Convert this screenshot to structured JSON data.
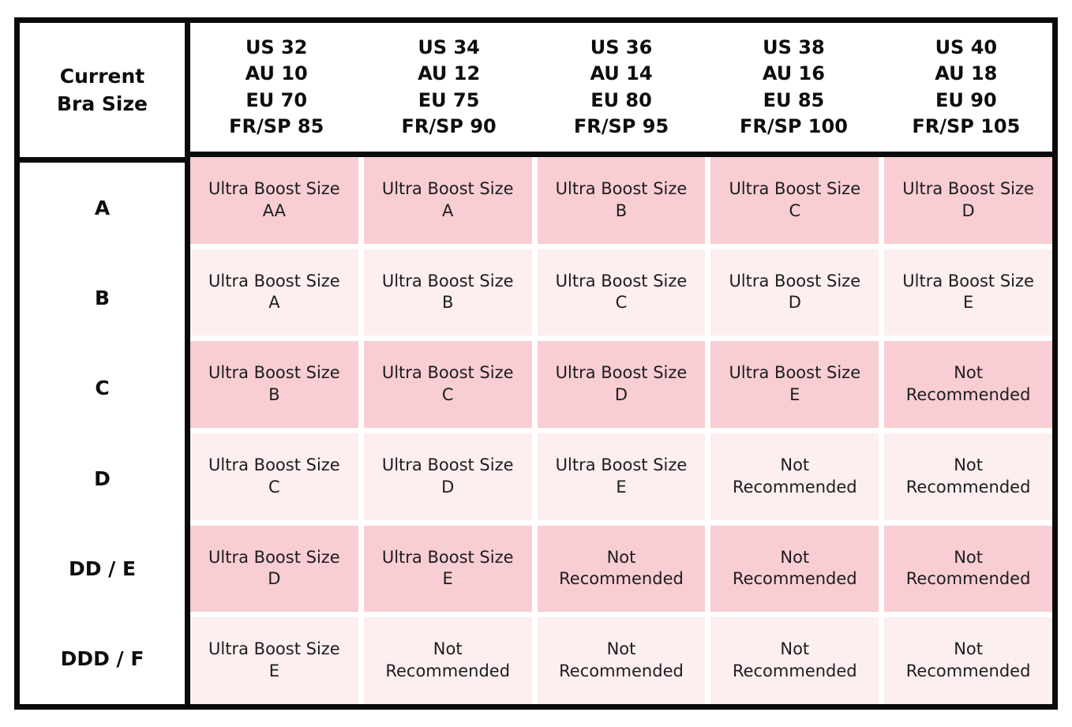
{
  "colors": {
    "border": "#0a0a0a",
    "text": "#1d1d1d",
    "cell_dark": "#f8cdd3",
    "cell_light": "#fdeef0",
    "background": "#ffffff"
  },
  "chart_data": {
    "type": "table",
    "corner_header": "Current\nBra Size",
    "column_headers": [
      "US 32\nAU 10\nEU 70\nFR/SP 85",
      "US 34\nAU 12\nEU 75\nFR/SP 90",
      "US 36\nAU 14\nEU 80\nFR/SP 95",
      "US 38\nAU 16\nEU 85\nFR/SP 100",
      "US 40\nAU 18\nEU 90\nFR/SP 105"
    ],
    "rows": [
      {
        "label": "A",
        "shade": "dark",
        "cells": [
          "Ultra Boost Size\nAA",
          "Ultra Boost Size\nA",
          "Ultra Boost Size\nB",
          "Ultra Boost Size\nC",
          "Ultra Boost Size\nD"
        ]
      },
      {
        "label": "B",
        "shade": "light",
        "cells": [
          "Ultra Boost Size\nA",
          "Ultra Boost Size\nB",
          "Ultra Boost Size\nC",
          "Ultra Boost Size\nD",
          "Ultra Boost Size\nE"
        ]
      },
      {
        "label": "C",
        "shade": "dark",
        "cells": [
          "Ultra Boost Size\nB",
          "Ultra Boost Size\nC",
          "Ultra Boost Size\nD",
          "Ultra Boost Size\nE",
          "Not\nRecommended"
        ]
      },
      {
        "label": "D",
        "shade": "light",
        "cells": [
          "Ultra Boost Size\nC",
          "Ultra Boost Size\nD",
          "Ultra Boost Size\nE",
          "Not\nRecommended",
          "Not\nRecommended"
        ]
      },
      {
        "label": "DD / E",
        "shade": "dark",
        "cells": [
          "Ultra Boost Size\nD",
          "Ultra Boost Size\nE",
          "Not\nRecommended",
          "Not\nRecommended",
          "Not\nRecommended"
        ]
      },
      {
        "label": "DDD / F",
        "shade": "light",
        "cells": [
          "Ultra Boost Size\nE",
          "Not\nRecommended",
          "Not\nRecommended",
          "Not\nRecommended",
          "Not\nRecommended"
        ]
      }
    ]
  }
}
